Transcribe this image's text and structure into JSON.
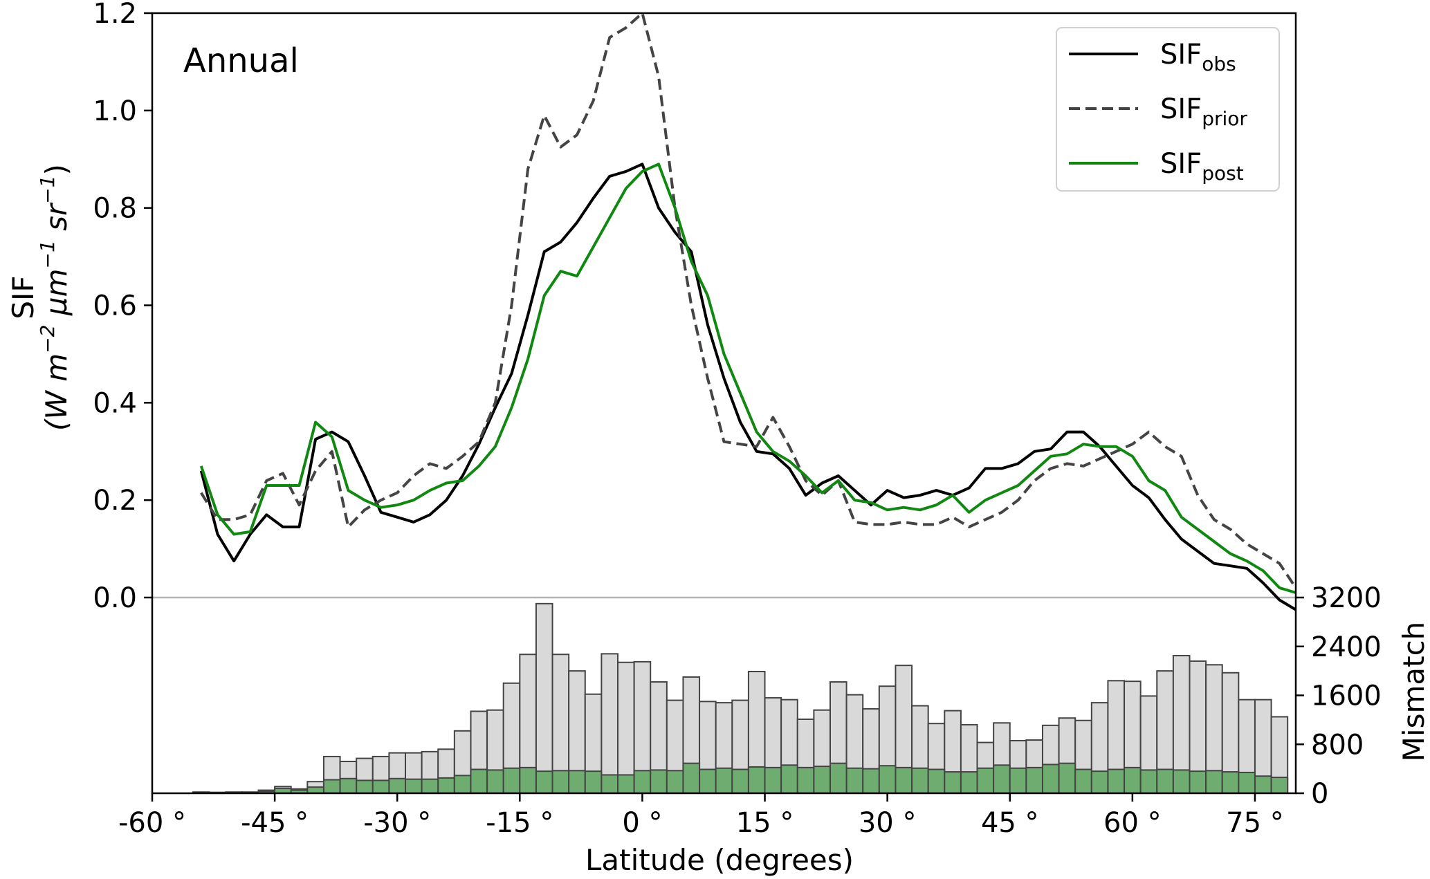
{
  "chart_data": {
    "type": "line",
    "annotation": "Annual",
    "xlabel": "Latitude (degrees)",
    "ylabel_line1": "SIF",
    "ylabel_line2": "(W m",
    "ylabel_unit_parts": {
      "m_exp": "−2",
      "um": " μm",
      "um_exp": "−1",
      "sr": " sr",
      "sr_exp": "−1",
      "close": ")"
    },
    "xlim": [
      -60,
      80
    ],
    "ylim": [
      0,
      1.2
    ],
    "x_ticks": [
      -60,
      -45,
      -30,
      -15,
      0,
      15,
      30,
      45,
      60,
      75
    ],
    "x_tick_labels": [
      "-60 °",
      "-45 °",
      "-30 °",
      "-15 °",
      "0 °",
      "15 °",
      "30 °",
      "45 °",
      "60 °",
      "75 °"
    ],
    "y_ticks": [
      0,
      0.2,
      0.4,
      0.6,
      0.8,
      1.0,
      1.2
    ],
    "y_tick_labels": [
      "0.0",
      "0.2",
      "0.4",
      "0.6",
      "0.8",
      "1.0",
      "1.2"
    ],
    "legend": {
      "placement": "top-right",
      "entries": [
        {
          "base": "SIF",
          "sub": "obs",
          "color": "#000000",
          "dash": "solid"
        },
        {
          "base": "SIF",
          "sub": "prior",
          "color": "#444444",
          "dash": "dashed"
        },
        {
          "base": "SIF",
          "sub": "post",
          "color": "#118811",
          "dash": "solid"
        }
      ]
    },
    "x": [
      -54,
      -52,
      -50,
      -48,
      -46,
      -44,
      -42,
      -40,
      -38,
      -36,
      -34,
      -32,
      -30,
      -28,
      -26,
      -24,
      -22,
      -20,
      -18,
      -16,
      -14,
      -12,
      -10,
      -8,
      -6,
      -4,
      -2,
      0,
      2,
      4,
      6,
      8,
      10,
      12,
      14,
      16,
      18,
      20,
      22,
      24,
      26,
      28,
      30,
      32,
      34,
      36,
      38,
      40,
      42,
      44,
      46,
      48,
      50,
      52,
      54,
      56,
      58,
      60,
      62,
      64,
      66,
      68,
      70,
      72,
      74,
      76,
      78,
      80
    ],
    "series": [
      {
        "name": "SIF",
        "sub": "obs",
        "color": "#000000",
        "dash": "solid",
        "values": [
          0.26,
          0.13,
          0.075,
          0.13,
          0.17,
          0.145,
          0.145,
          0.325,
          0.34,
          0.32,
          0.25,
          0.175,
          0.165,
          0.155,
          0.17,
          0.2,
          0.25,
          0.315,
          0.39,
          0.46,
          0.58,
          0.71,
          0.73,
          0.77,
          0.82,
          0.865,
          0.875,
          0.89,
          0.8,
          0.75,
          0.71,
          0.56,
          0.45,
          0.36,
          0.3,
          0.295,
          0.265,
          0.21,
          0.235,
          0.25,
          0.22,
          0.19,
          0.22,
          0.205,
          0.21,
          0.22,
          0.21,
          0.225,
          0.265,
          0.265,
          0.275,
          0.3,
          0.305,
          0.34,
          0.34,
          0.31,
          0.27,
          0.23,
          0.205,
          0.16,
          0.12,
          0.095,
          0.07,
          0.065,
          0.06,
          0.03,
          -0.005,
          -0.025
        ]
      },
      {
        "name": "SIF",
        "sub": "prior",
        "color": "#444444",
        "dash": "dashed",
        "values": [
          0.215,
          0.16,
          0.16,
          0.17,
          0.24,
          0.255,
          0.19,
          0.26,
          0.3,
          0.145,
          0.18,
          0.2,
          0.215,
          0.25,
          0.275,
          0.265,
          0.29,
          0.32,
          0.4,
          0.6,
          0.88,
          0.99,
          0.925,
          0.95,
          1.02,
          1.15,
          1.17,
          1.2,
          1.07,
          0.8,
          0.6,
          0.45,
          0.32,
          0.315,
          0.31,
          0.37,
          0.31,
          0.24,
          0.21,
          0.24,
          0.155,
          0.15,
          0.15,
          0.155,
          0.15,
          0.15,
          0.165,
          0.145,
          0.16,
          0.175,
          0.2,
          0.24,
          0.265,
          0.275,
          0.27,
          0.285,
          0.3,
          0.315,
          0.34,
          0.31,
          0.29,
          0.21,
          0.16,
          0.14,
          0.11,
          0.09,
          0.07,
          0.02
        ]
      },
      {
        "name": "SIF",
        "sub": "post",
        "color": "#118811",
        "dash": "solid",
        "values": [
          0.27,
          0.17,
          0.13,
          0.135,
          0.23,
          0.23,
          0.23,
          0.36,
          0.33,
          0.22,
          0.2,
          0.185,
          0.19,
          0.2,
          0.22,
          0.235,
          0.24,
          0.27,
          0.31,
          0.39,
          0.49,
          0.62,
          0.67,
          0.66,
          0.72,
          0.78,
          0.84,
          0.875,
          0.89,
          0.8,
          0.69,
          0.62,
          0.5,
          0.42,
          0.34,
          0.3,
          0.28,
          0.25,
          0.215,
          0.24,
          0.2,
          0.195,
          0.18,
          0.185,
          0.18,
          0.19,
          0.21,
          0.175,
          0.2,
          0.215,
          0.23,
          0.26,
          0.29,
          0.295,
          0.315,
          0.31,
          0.31,
          0.29,
          0.24,
          0.22,
          0.165,
          0.14,
          0.115,
          0.09,
          0.075,
          0.055,
          0.02,
          0.01
        ]
      }
    ],
    "histogram": {
      "ylabel": "Mismatch",
      "ylim": [
        0,
        3200
      ],
      "y_ticks": [
        0,
        800,
        1600,
        2400,
        3200
      ],
      "y_tick_labels": [
        "0",
        "800",
        "1600",
        "2400",
        "3200"
      ],
      "bin_width": 2,
      "bin_centers": [
        -56,
        -54,
        -52,
        -50,
        -48,
        -46,
        -44,
        -42,
        -40,
        -38,
        -36,
        -34,
        -32,
        -30,
        -28,
        -26,
        -24,
        -22,
        -20,
        -18,
        -16,
        -14,
        -12,
        -10,
        -8,
        -6,
        -4,
        -2,
        0,
        2,
        4,
        6,
        8,
        10,
        12,
        14,
        16,
        18,
        20,
        22,
        24,
        26,
        28,
        30,
        32,
        34,
        36,
        38,
        40,
        42,
        44,
        46,
        48,
        50,
        52,
        54,
        56,
        58,
        60,
        62,
        64,
        66,
        68,
        70,
        72,
        74,
        76,
        78
      ],
      "grey_color": "#d9d9d9",
      "green_color": "#6fac6f",
      "grey_values": [
        0,
        20,
        15,
        20,
        20,
        50,
        110,
        70,
        190,
        600,
        520,
        570,
        600,
        660,
        660,
        680,
        720,
        1020,
        1340,
        1360,
        1800,
        2270,
        3100,
        2270,
        2000,
        1620,
        2280,
        2140,
        2150,
        1820,
        1520,
        1900,
        1500,
        1480,
        1520,
        1990,
        1560,
        1530,
        1210,
        1360,
        1820,
        1610,
        1380,
        1750,
        2090,
        1430,
        1140,
        1350,
        1120,
        830,
        1150,
        860,
        870,
        1110,
        1230,
        1190,
        1480,
        1840,
        1830,
        1590,
        2000,
        2250,
        2160,
        2100,
        1970,
        1530,
        1530,
        1250
      ]
    }
  }
}
